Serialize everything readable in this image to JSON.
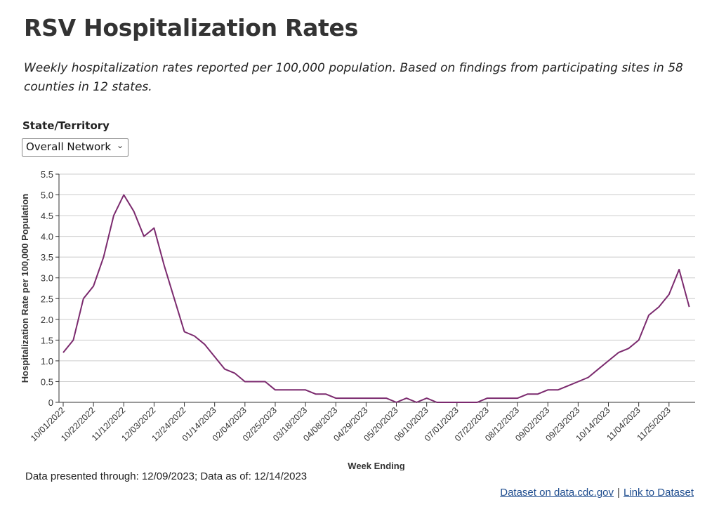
{
  "page": {
    "title": "RSV Hospitalization Rates",
    "subtitle": "Weekly hospitalization rates reported per 100,000 population. Based on findings from participating sites in 58 counties in 12 states."
  },
  "filter": {
    "label": "State/Territory",
    "selected": "Overall Network"
  },
  "footer": {
    "note": "Data presented through: 12/09/2023; Data as of: 12/14/2023",
    "link1": "Dataset on data.cdc.gov",
    "separator": "|",
    "link2": "Link to Dataset"
  },
  "colors": {
    "line": "#7b2a6e",
    "grid": "#cccccc",
    "axis": "#333333"
  },
  "icons": {
    "select": "chevron-down-icon"
  },
  "chart_data": {
    "type": "line",
    "title": "",
    "xlabel": "Week Ending",
    "ylabel": "Hospitalization Rate per 100,000 Population",
    "ylim": [
      0,
      5.5
    ],
    "yticks": [
      0,
      0.5,
      1.0,
      1.5,
      2.0,
      2.5,
      3.0,
      3.5,
      4.0,
      4.5,
      5.0,
      5.5
    ],
    "ytick_labels": [
      "0",
      "0.5",
      "1.0",
      "1.5",
      "2.0",
      "2.5",
      "3.0",
      "3.5",
      "4.0",
      "4.5",
      "5.0",
      "5.5"
    ],
    "xtick_labels": [
      "10/01/2022",
      "10/22/2022",
      "11/12/2022",
      "12/03/2022",
      "12/24/2022",
      "01/14/2023",
      "02/04/2023",
      "02/25/2023",
      "03/18/2023",
      "04/08/2023",
      "04/29/2023",
      "05/20/2023",
      "06/10/2023",
      "07/01/2023",
      "07/22/2023",
      "08/12/2023",
      "09/02/2023",
      "09/23/2023",
      "10/14/2023",
      "11/04/2023",
      "11/25/2023"
    ],
    "grid": true,
    "legend": "none",
    "series": [
      {
        "values": [
          1.2,
          1.5,
          2.5,
          2.8,
          3.5,
          4.5,
          5.0,
          4.6,
          4.0,
          4.2,
          3.3,
          2.5,
          1.7,
          1.6,
          1.4,
          1.1,
          0.8,
          0.7,
          0.5,
          0.5,
          0.5,
          0.3,
          0.3,
          0.3,
          0.3,
          0.2,
          0.2,
          0.1,
          0.1,
          0.1,
          0.1,
          0.1,
          0.1,
          0.0,
          0.1,
          0.0,
          0.1,
          0.0,
          0.0,
          0.0,
          0.0,
          0.0,
          0.1,
          0.1,
          0.1,
          0.1,
          0.2,
          0.2,
          0.3,
          0.3,
          0.4,
          0.5,
          0.6,
          0.8,
          1.0,
          1.2,
          1.3,
          1.5,
          2.1,
          2.3,
          2.6,
          3.2,
          2.3
        ]
      }
    ]
  }
}
